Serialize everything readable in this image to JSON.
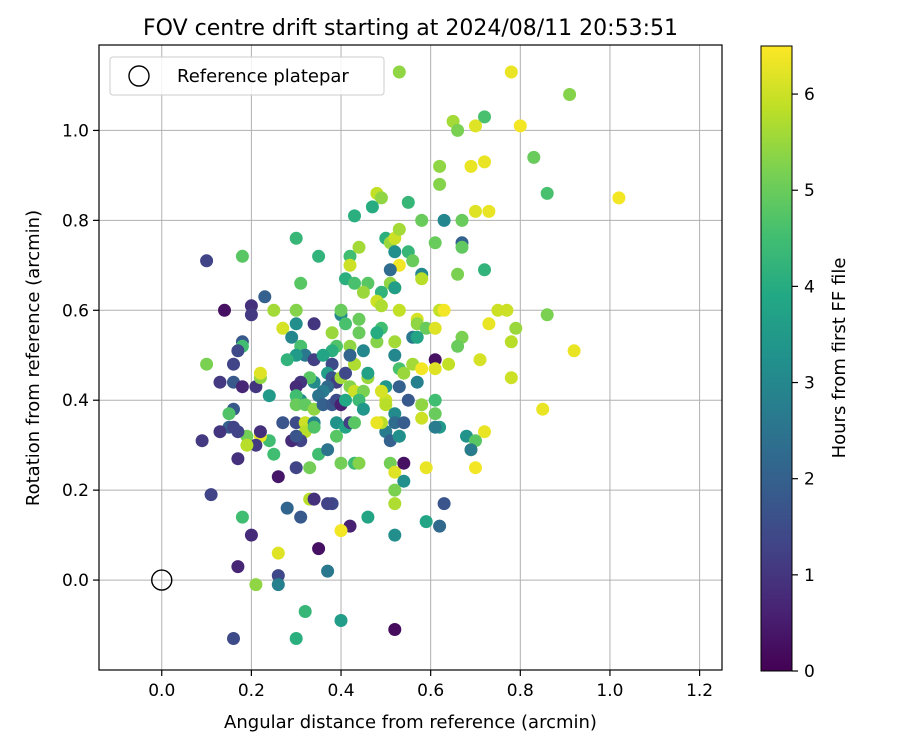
{
  "chart_data": {
    "type": "scatter",
    "title": "FOV centre drift starting at 2024/08/11 20:53:51",
    "xlabel": "Angular distance from reference (arcmin)",
    "ylabel": "Rotation from reference (arcmin)",
    "xlim": [
      -0.14,
      1.25
    ],
    "ylim": [
      -0.2,
      1.19
    ],
    "xticks": [
      0.0,
      0.2,
      0.4,
      0.6,
      0.8,
      1.0,
      1.2
    ],
    "yticks": [
      0.0,
      0.2,
      0.4,
      0.6,
      0.8,
      1.0
    ],
    "grid": true,
    "legend": {
      "placement": "top-left",
      "entries": [
        "Reference platepar"
      ]
    },
    "reference_point": {
      "x": 0.0,
      "y": 0.0,
      "label": "Reference platepar"
    },
    "colorbar": {
      "label": "Hours from first FF file",
      "range": [
        0,
        6.5
      ],
      "ticks": [
        0,
        1,
        2,
        3,
        4,
        5,
        6
      ],
      "colormap": "viridis"
    },
    "points": [
      [
        0.53,
        1.13,
        5.4
      ],
      [
        0.78,
        1.13,
        6.3
      ],
      [
        0.91,
        1.08,
        5.3
      ],
      [
        0.72,
        1.03,
        4.6
      ],
      [
        0.65,
        1.02,
        5.6
      ],
      [
        0.66,
        1.0,
        5.2
      ],
      [
        0.7,
        1.01,
        6.2
      ],
      [
        0.8,
        1.01,
        6.4
      ],
      [
        0.83,
        0.94,
        5.0
      ],
      [
        0.62,
        0.92,
        5.4
      ],
      [
        0.72,
        0.93,
        6.3
      ],
      [
        0.69,
        0.92,
        6.3
      ],
      [
        0.62,
        0.88,
        5.3
      ],
      [
        0.86,
        0.86,
        4.6
      ],
      [
        0.48,
        0.86,
        5.9
      ],
      [
        0.49,
        0.85,
        5.4
      ],
      [
        0.55,
        0.84,
        4.3
      ],
      [
        0.47,
        0.83,
        4.0
      ],
      [
        0.43,
        0.81,
        4.1
      ],
      [
        0.58,
        0.8,
        5.0
      ],
      [
        0.63,
        0.8,
        3.0
      ],
      [
        0.67,
        0.8,
        5.0
      ],
      [
        0.7,
        0.82,
        6.2
      ],
      [
        0.73,
        0.82,
        6.3
      ],
      [
        1.02,
        0.85,
        6.4
      ],
      [
        0.3,
        0.76,
        4.3
      ],
      [
        0.5,
        0.76,
        4.1
      ],
      [
        0.51,
        0.75,
        5.5
      ],
      [
        0.52,
        0.76,
        6.0
      ],
      [
        0.53,
        0.78,
        5.6
      ],
      [
        0.42,
        0.72,
        4.5
      ],
      [
        0.44,
        0.74,
        5.6
      ],
      [
        0.35,
        0.72,
        4.2
      ],
      [
        0.18,
        0.72,
        4.8
      ],
      [
        0.1,
        0.71,
        1.3
      ],
      [
        0.67,
        0.75,
        2.0
      ],
      [
        0.67,
        0.74,
        4.9
      ],
      [
        0.61,
        0.75,
        5.0
      ],
      [
        0.55,
        0.73,
        4.3
      ],
      [
        0.52,
        0.73,
        3.2
      ],
      [
        0.53,
        0.7,
        6.4
      ],
      [
        0.56,
        0.71,
        5.0
      ],
      [
        0.72,
        0.69,
        4.2
      ],
      [
        0.42,
        0.7,
        6.0
      ],
      [
        0.41,
        0.67,
        4.1
      ],
      [
        0.51,
        0.69,
        2.3
      ],
      [
        0.51,
        0.66,
        5.4
      ],
      [
        0.58,
        0.68,
        3.0
      ],
      [
        0.58,
        0.67,
        5.8
      ],
      [
        0.66,
        0.68,
        5.2
      ],
      [
        0.31,
        0.66,
        4.8
      ],
      [
        0.43,
        0.66,
        4.6
      ],
      [
        0.46,
        0.66,
        4.8
      ],
      [
        0.49,
        0.64,
        4.2
      ],
      [
        0.45,
        0.64,
        5.5
      ],
      [
        0.52,
        0.65,
        5.8
      ],
      [
        0.48,
        0.62,
        6.0
      ],
      [
        0.49,
        0.61,
        5.7
      ],
      [
        0.52,
        0.65,
        3.6
      ],
      [
        0.2,
        0.61,
        0.9
      ],
      [
        0.2,
        0.59,
        1.1
      ],
      [
        0.14,
        0.6,
        0.3
      ],
      [
        0.23,
        0.63,
        2.0
      ],
      [
        0.25,
        0.6,
        5.6
      ],
      [
        0.3,
        0.6,
        5.3
      ],
      [
        0.3,
        0.57,
        3.2
      ],
      [
        0.27,
        0.56,
        6.1
      ],
      [
        0.34,
        0.57,
        1.0
      ],
      [
        0.4,
        0.59,
        3.0
      ],
      [
        0.4,
        0.6,
        5.0
      ],
      [
        0.41,
        0.57,
        4.6
      ],
      [
        0.44,
        0.58,
        5.0
      ],
      [
        0.44,
        0.55,
        5.0
      ],
      [
        0.38,
        0.55,
        5.5
      ],
      [
        0.39,
        0.52,
        4.7
      ],
      [
        0.38,
        0.51,
        4.1
      ],
      [
        0.42,
        0.52,
        5.4
      ],
      [
        0.53,
        0.6,
        5.9
      ],
      [
        0.57,
        0.58,
        6.1
      ],
      [
        0.57,
        0.57,
        5.4
      ],
      [
        0.59,
        0.56,
        5.0
      ],
      [
        0.56,
        0.54,
        2.6
      ],
      [
        0.57,
        0.54,
        3.8
      ],
      [
        0.61,
        0.56,
        6.2
      ],
      [
        0.62,
        0.6,
        5.9
      ],
      [
        0.63,
        0.6,
        6.4
      ],
      [
        0.67,
        0.54,
        5.2
      ],
      [
        0.66,
        0.52,
        5.0
      ],
      [
        0.73,
        0.57,
        6.3
      ],
      [
        0.75,
        0.6,
        6.0
      ],
      [
        0.77,
        0.6,
        6.0
      ],
      [
        0.79,
        0.56,
        5.5
      ],
      [
        0.78,
        0.53,
        5.8
      ],
      [
        0.86,
        0.59,
        5.2
      ],
      [
        0.92,
        0.51,
        6.3
      ],
      [
        0.49,
        0.56,
        4.5
      ],
      [
        0.48,
        0.53,
        5.3
      ],
      [
        0.52,
        0.5,
        3.0
      ],
      [
        0.52,
        0.53,
        5.6
      ],
      [
        0.29,
        0.54,
        3.0
      ],
      [
        0.31,
        0.52,
        4.6
      ],
      [
        0.32,
        0.5,
        2.6
      ],
      [
        0.3,
        0.5,
        3.5
      ],
      [
        0.28,
        0.49,
        4.2
      ],
      [
        0.18,
        0.53,
        1.8
      ],
      [
        0.18,
        0.52,
        4.5
      ],
      [
        0.17,
        0.51,
        1.4
      ],
      [
        0.16,
        0.48,
        1.3
      ],
      [
        0.1,
        0.48,
        5.2
      ],
      [
        0.13,
        0.44,
        1.1
      ],
      [
        0.16,
        0.44,
        1.8
      ],
      [
        0.18,
        0.43,
        0.7
      ],
      [
        0.21,
        0.43,
        1.0
      ],
      [
        0.22,
        0.45,
        5.4
      ],
      [
        0.22,
        0.46,
        6.2
      ],
      [
        0.24,
        0.41,
        3.5
      ],
      [
        0.34,
        0.49,
        1.2
      ],
      [
        0.36,
        0.5,
        3.8
      ],
      [
        0.38,
        0.48,
        1.5
      ],
      [
        0.37,
        0.46,
        3.6
      ],
      [
        0.38,
        0.45,
        1.7
      ],
      [
        0.39,
        0.44,
        1.2
      ],
      [
        0.37,
        0.43,
        2.2
      ],
      [
        0.36,
        0.42,
        2.7
      ],
      [
        0.35,
        0.41,
        2.5
      ],
      [
        0.34,
        0.44,
        3.1
      ],
      [
        0.33,
        0.45,
        4.8
      ],
      [
        0.31,
        0.44,
        1.0
      ],
      [
        0.3,
        0.43,
        0.8
      ],
      [
        0.31,
        0.4,
        3.1
      ],
      [
        0.3,
        0.41,
        4.5
      ],
      [
        0.3,
        0.39,
        5.0
      ],
      [
        0.32,
        0.39,
        4.9
      ],
      [
        0.34,
        0.38,
        5.4
      ],
      [
        0.36,
        0.39,
        2.0
      ],
      [
        0.38,
        0.39,
        1.8
      ],
      [
        0.39,
        0.4,
        1.5
      ],
      [
        0.4,
        0.39,
        0.6
      ],
      [
        0.41,
        0.4,
        3.9
      ],
      [
        0.4,
        0.45,
        5.6
      ],
      [
        0.41,
        0.46,
        1.4
      ],
      [
        0.42,
        0.43,
        5.3
      ],
      [
        0.43,
        0.42,
        6.0
      ],
      [
        0.45,
        0.42,
        5.2
      ],
      [
        0.44,
        0.4,
        4.4
      ],
      [
        0.45,
        0.38,
        3.4
      ],
      [
        0.46,
        0.45,
        5.5
      ],
      [
        0.46,
        0.46,
        3.7
      ],
      [
        0.43,
        0.48,
        5.7
      ],
      [
        0.42,
        0.5,
        2.1
      ],
      [
        0.45,
        0.51,
        3.0
      ],
      [
        0.48,
        0.55,
        4.0
      ],
      [
        0.53,
        0.47,
        4.6
      ],
      [
        0.54,
        0.46,
        5.5
      ],
      [
        0.56,
        0.48,
        5.6
      ],
      [
        0.58,
        0.47,
        6.4
      ],
      [
        0.61,
        0.49,
        0.3
      ],
      [
        0.61,
        0.47,
        6.2
      ],
      [
        0.64,
        0.48,
        5.9
      ],
      [
        0.57,
        0.44,
        2.8
      ],
      [
        0.53,
        0.43,
        2.0
      ],
      [
        0.5,
        0.43,
        3.4
      ],
      [
        0.5,
        0.4,
        6.0
      ],
      [
        0.49,
        0.42,
        6.1
      ],
      [
        0.5,
        0.39,
        5.8
      ],
      [
        0.52,
        0.37,
        3.1
      ],
      [
        0.52,
        0.35,
        2.3
      ],
      [
        0.5,
        0.33,
        2.7
      ],
      [
        0.51,
        0.31,
        2.0
      ],
      [
        0.49,
        0.35,
        5.8
      ],
      [
        0.48,
        0.35,
        6.3
      ],
      [
        0.53,
        0.32,
        5.0
      ],
      [
        0.53,
        0.32,
        3.2
      ],
      [
        0.54,
        0.35,
        1.9
      ],
      [
        0.55,
        0.4,
        1.8
      ],
      [
        0.58,
        0.39,
        5.4
      ],
      [
        0.58,
        0.36,
        6.0
      ],
      [
        0.61,
        0.4,
        4.5
      ],
      [
        0.61,
        0.37,
        5.0
      ],
      [
        0.62,
        0.34,
        3.5
      ],
      [
        0.61,
        0.34,
        2.7
      ],
      [
        0.71,
        0.49,
        6.1
      ],
      [
        0.68,
        0.32,
        3.3
      ],
      [
        0.7,
        0.31,
        4.8
      ],
      [
        0.72,
        0.33,
        6.3
      ],
      [
        0.69,
        0.29,
        6.3
      ],
      [
        0.7,
        0.25,
        6.4
      ],
      [
        0.69,
        0.29,
        2.7
      ],
      [
        0.78,
        0.45,
        6.0
      ],
      [
        0.85,
        0.38,
        6.3
      ],
      [
        0.27,
        0.35,
        1.7
      ],
      [
        0.3,
        0.35,
        1.5
      ],
      [
        0.32,
        0.35,
        6.0
      ],
      [
        0.34,
        0.35,
        3.0
      ],
      [
        0.32,
        0.33,
        5.8
      ],
      [
        0.31,
        0.31,
        1.3
      ],
      [
        0.29,
        0.31,
        0.8
      ],
      [
        0.3,
        0.32,
        1.7
      ],
      [
        0.34,
        0.34,
        4.7
      ],
      [
        0.35,
        0.28,
        4.5
      ],
      [
        0.37,
        0.29,
        2.5
      ],
      [
        0.39,
        0.35,
        3.3
      ],
      [
        0.41,
        0.34,
        3.8
      ],
      [
        0.42,
        0.35,
        1.2
      ],
      [
        0.43,
        0.35,
        4.8
      ],
      [
        0.39,
        0.32,
        4.8
      ],
      [
        0.3,
        0.25,
        1.3
      ],
      [
        0.33,
        0.25,
        5.1
      ],
      [
        0.26,
        0.23,
        0.4
      ],
      [
        0.24,
        0.31,
        4.5
      ],
      [
        0.22,
        0.32,
        6.3
      ],
      [
        0.22,
        0.33,
        0.9
      ],
      [
        0.21,
        0.3,
        1.1
      ],
      [
        0.19,
        0.32,
        5.1
      ],
      [
        0.19,
        0.3,
        5.8
      ],
      [
        0.17,
        0.33,
        1.3
      ],
      [
        0.15,
        0.34,
        2.0
      ],
      [
        0.16,
        0.34,
        1.3
      ],
      [
        0.13,
        0.33,
        1.0
      ],
      [
        0.09,
        0.31,
        1.1
      ],
      [
        0.16,
        0.38,
        1.8
      ],
      [
        0.15,
        0.37,
        4.7
      ],
      [
        0.17,
        0.27,
        0.9
      ],
      [
        0.25,
        0.28,
        4.5
      ],
      [
        0.4,
        0.26,
        5.1
      ],
      [
        0.43,
        0.26,
        4.4
      ],
      [
        0.44,
        0.26,
        5.3
      ],
      [
        0.51,
        0.26,
        5.1
      ],
      [
        0.52,
        0.24,
        6.2
      ],
      [
        0.54,
        0.26,
        0.3
      ],
      [
        0.54,
        0.22,
        3.2
      ],
      [
        0.52,
        0.2,
        5.2
      ],
      [
        0.52,
        0.17,
        5.7
      ],
      [
        0.59,
        0.25,
        6.3
      ],
      [
        0.63,
        0.17,
        1.7
      ],
      [
        0.62,
        0.12,
        2.2
      ],
      [
        0.59,
        0.13,
        3.8
      ],
      [
        0.52,
        0.1,
        3.2
      ],
      [
        0.46,
        0.14,
        3.8
      ],
      [
        0.42,
        0.12,
        0.6
      ],
      [
        0.4,
        0.11,
        6.4
      ],
      [
        0.38,
        0.17,
        1.4
      ],
      [
        0.37,
        0.17,
        1.3
      ],
      [
        0.33,
        0.18,
        5.8
      ],
      [
        0.34,
        0.18,
        0.9
      ],
      [
        0.31,
        0.14,
        1.8
      ],
      [
        0.28,
        0.16,
        2.1
      ],
      [
        0.11,
        0.19,
        1.3
      ],
      [
        0.2,
        0.1,
        0.8
      ],
      [
        0.18,
        0.14,
        4.5
      ],
      [
        0.17,
        0.03,
        0.7
      ],
      [
        0.26,
        0.06,
        6.2
      ],
      [
        0.35,
        0.07,
        0.3
      ],
      [
        0.37,
        0.02,
        2.6
      ],
      [
        0.26,
        0.01,
        1.4
      ],
      [
        0.26,
        -0.01,
        2.8
      ],
      [
        0.21,
        -0.01,
        5.4
      ],
      [
        0.32,
        -0.07,
        4.3
      ],
      [
        0.4,
        -0.09,
        3.6
      ],
      [
        0.52,
        -0.11,
        0.2
      ],
      [
        0.16,
        -0.13,
        1.5
      ],
      [
        0.3,
        -0.13,
        4.1
      ]
    ]
  }
}
